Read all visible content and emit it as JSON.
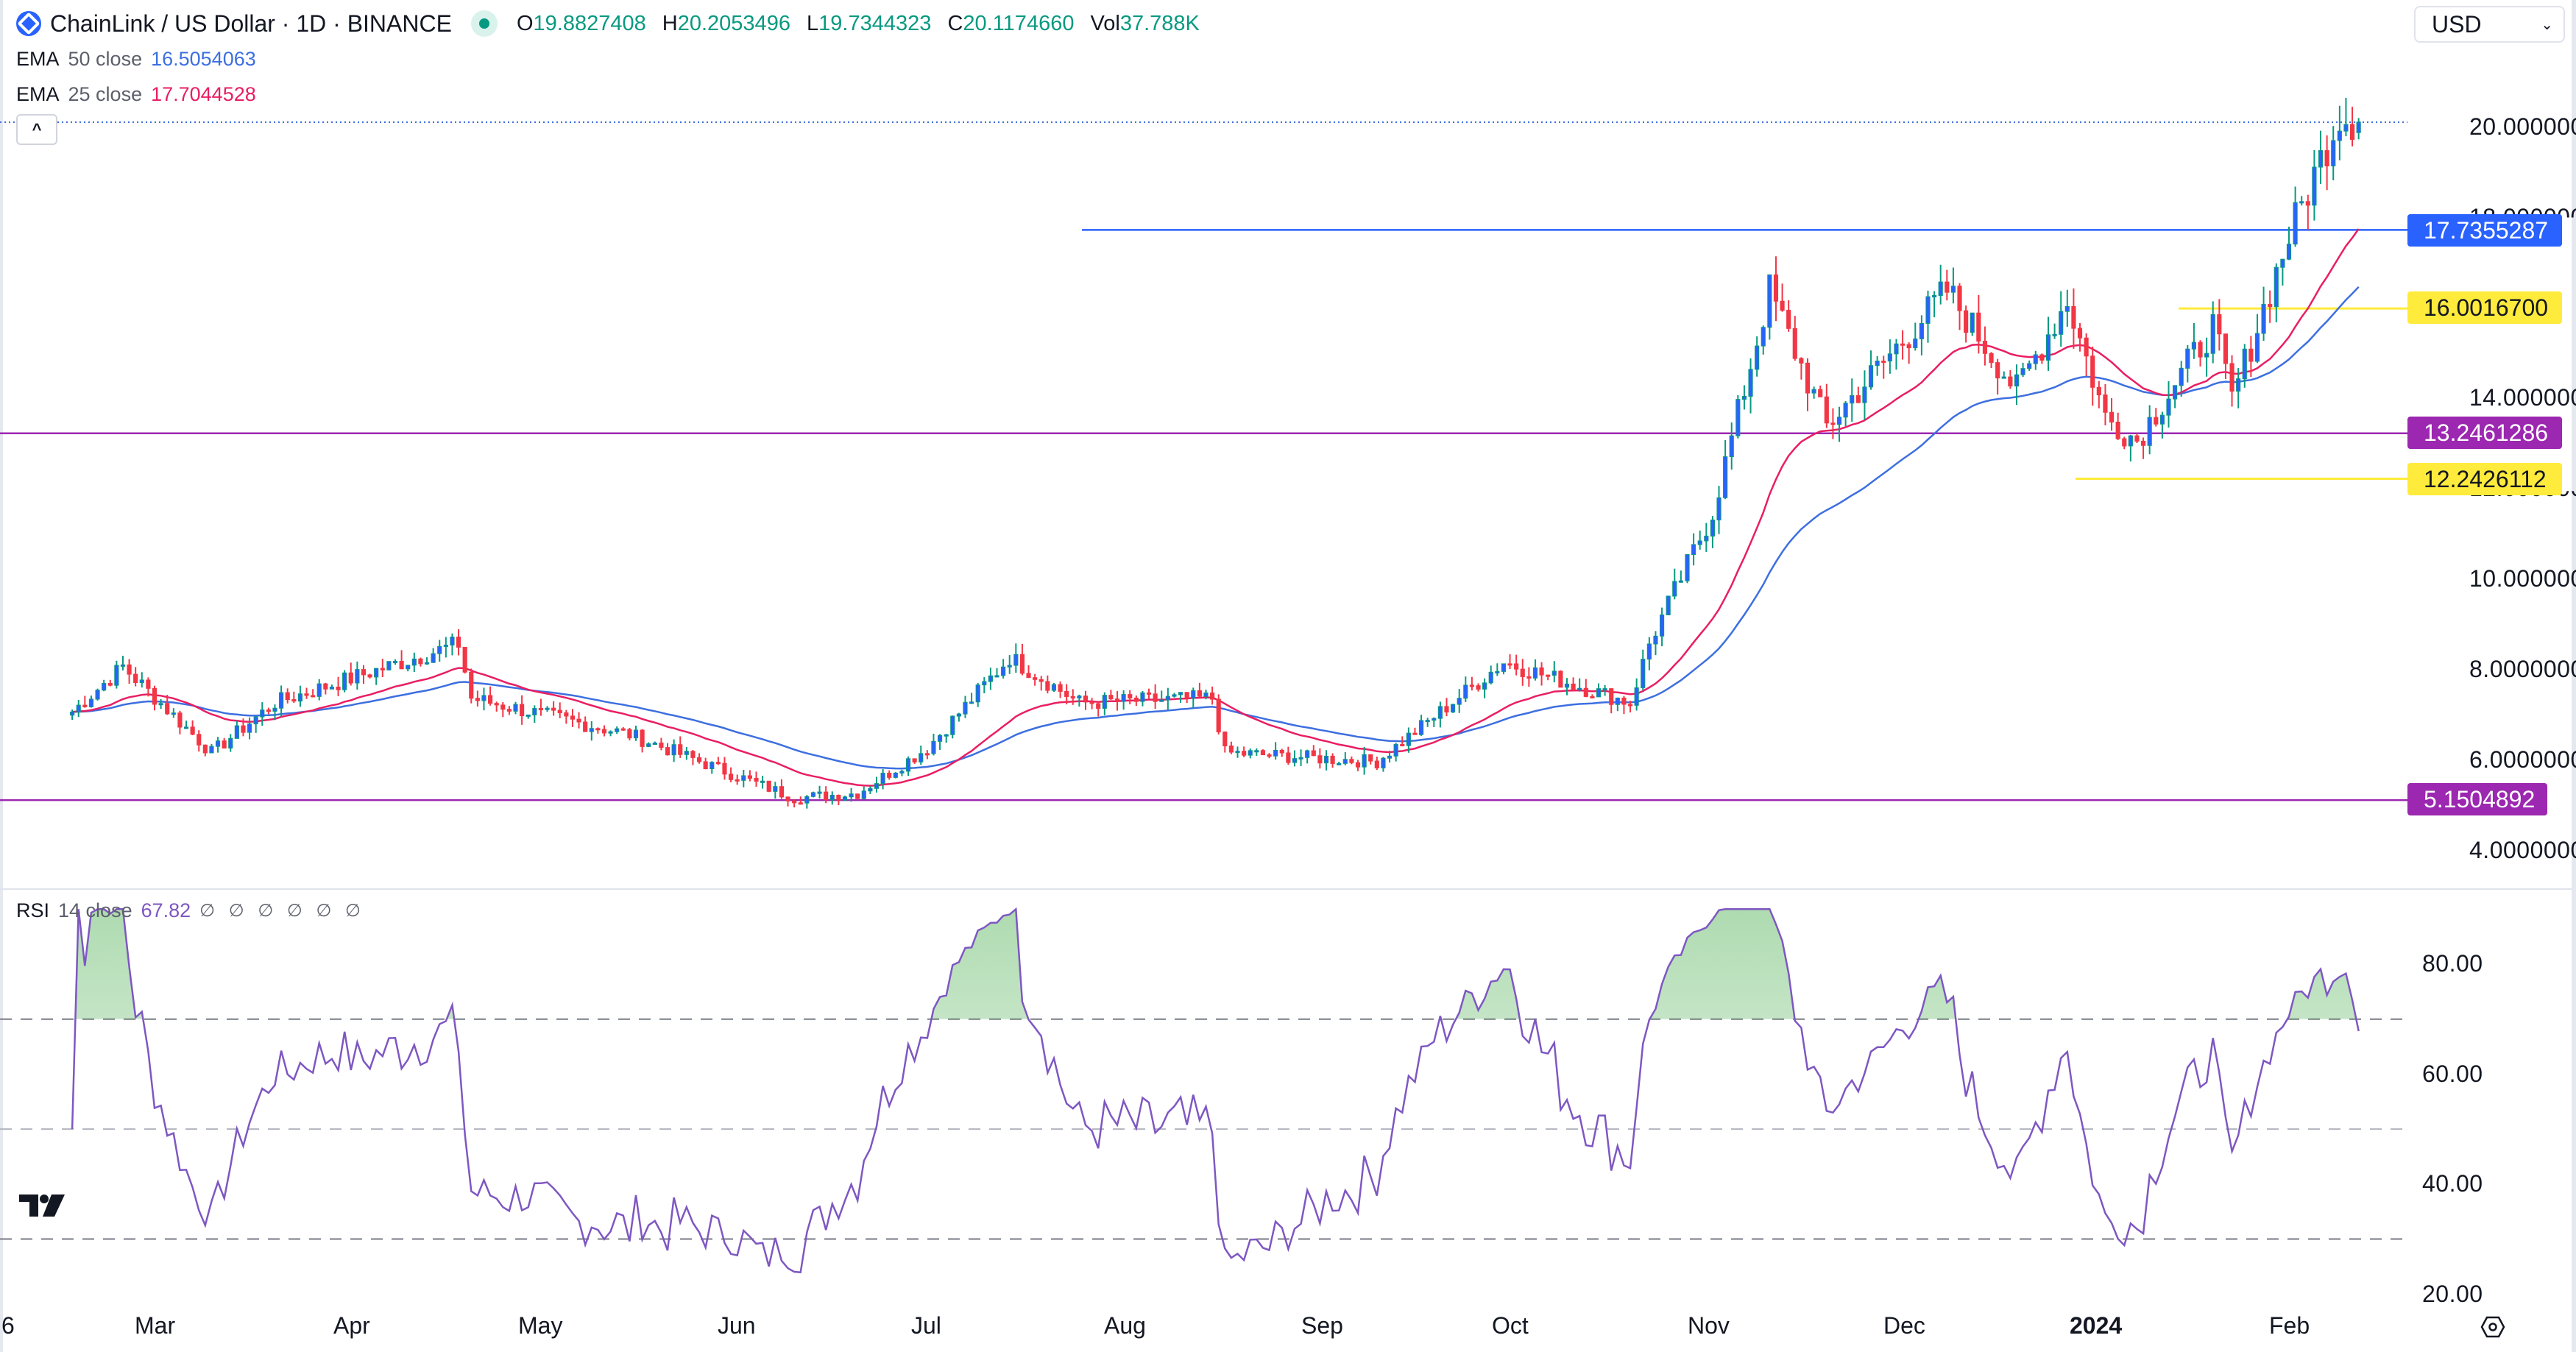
{
  "header": {
    "symbol_title": "ChainLink / US Dollar · 1D · BINANCE",
    "ohlc": [
      {
        "key": "O",
        "value": "19.8827408"
      },
      {
        "key": "H",
        "value": "20.2053496"
      },
      {
        "key": "L",
        "value": "19.7344323"
      },
      {
        "key": "C",
        "value": "20.1174660"
      },
      {
        "key": "Vol",
        "value": "37.788K"
      }
    ],
    "market_status": "open"
  },
  "indicators": [
    {
      "name": "EMA",
      "params": "50 close",
      "value": "16.5054063",
      "color": "#3d6fe0"
    },
    {
      "name": "EMA",
      "params": "25 close",
      "value": "17.7044528",
      "color": "#e91e63"
    }
  ],
  "collapse_label": "^",
  "currency_select": {
    "value": "USD",
    "chevron": "⌄"
  },
  "price_axis": {
    "ticks": [
      "20.0000000",
      "18.0000000",
      "14.0000000",
      "12.0000000",
      "10.0000000",
      "8.0000000",
      "6.0000000",
      "4.0000000"
    ]
  },
  "price_tags": [
    {
      "value": "17.7355287",
      "bg": "#2962ff",
      "fg": "#ffffff"
    },
    {
      "value": "16.0016700",
      "bg": "#ffeb3b",
      "fg": "#131722"
    },
    {
      "value": "13.2461286",
      "bg": "#9c27b0",
      "fg": "#ffffff"
    },
    {
      "value": "12.2426112",
      "bg": "#ffeb3b",
      "fg": "#131722"
    },
    {
      "value": "5.1504892",
      "bg": "#9c27b0",
      "fg": "#ffffff"
    }
  ],
  "rsi": {
    "name": "RSI",
    "params": "14 close",
    "value": "67.82",
    "na_values": "∅ ∅ ∅ ∅ ∅ ∅",
    "ticks": [
      "80.00",
      "60.00",
      "40.00",
      "20.00"
    ]
  },
  "time_axis": {
    "labels": [
      "6",
      "Mar",
      "Apr",
      "May",
      "Jun",
      "Jul",
      "Aug",
      "Sep",
      "Oct",
      "Nov",
      "Dec",
      "2024",
      "Feb"
    ]
  },
  "colors": {
    "up": "#2962ff",
    "up_wick": "#089981",
    "down": "#f23645",
    "ema50": "#3d6fe0",
    "ema25": "#e91e63",
    "rsi": "#7e57c2",
    "support_purple": "#9c27b0",
    "resistance_blue": "#2962ff",
    "level_yellow": "#ffeb3b"
  },
  "chart_data": {
    "type": "candlestick",
    "title": "ChainLink / US Dollar · 1D · BINANCE",
    "x_range": [
      "2023-02",
      "2024-02"
    ],
    "xticks": [
      "Mar",
      "Apr",
      "May",
      "Jun",
      "Jul",
      "Aug",
      "Sep",
      "Oct",
      "Nov",
      "Dec",
      "2024",
      "Feb"
    ],
    "ylim": [
      3.5,
      21.0
    ],
    "yticks": [
      4,
      6,
      8,
      10,
      12,
      14,
      18,
      20
    ],
    "last_bar": {
      "open": 19.8827408,
      "high": 20.2053496,
      "low": 19.7344323,
      "close": 20.117466,
      "volume": "37.788K"
    },
    "key_price_points": [
      {
        "date": "2023-02-16",
        "close": 7.1
      },
      {
        "date": "2023-02-24",
        "close": 8.1
      },
      {
        "date": "2023-03-10",
        "close": 6.2
      },
      {
        "date": "2023-03-20",
        "close": 7.3
      },
      {
        "date": "2023-04-18",
        "close": 8.6
      },
      {
        "date": "2023-04-20",
        "close": 7.4
      },
      {
        "date": "2023-05-15",
        "close": 6.6
      },
      {
        "date": "2023-06-10",
        "close": 5.2
      },
      {
        "date": "2023-06-20",
        "close": 5.3
      },
      {
        "date": "2023-07-01",
        "close": 6.3
      },
      {
        "date": "2023-07-14",
        "close": 8.3
      },
      {
        "date": "2023-07-25",
        "close": 7.3
      },
      {
        "date": "2023-08-15",
        "close": 7.4
      },
      {
        "date": "2023-08-17",
        "close": 6.2
      },
      {
        "date": "2023-09-10",
        "close": 6.0
      },
      {
        "date": "2023-09-30",
        "close": 8.2
      },
      {
        "date": "2023-10-20",
        "close": 7.3
      },
      {
        "date": "2023-10-23",
        "close": 8.6
      },
      {
        "date": "2023-11-02",
        "close": 11.5
      },
      {
        "date": "2023-11-11",
        "close": 16.4
      },
      {
        "date": "2023-11-20",
        "close": 13.4
      },
      {
        "date": "2023-12-09",
        "close": 16.4
      },
      {
        "date": "2023-12-20",
        "close": 14.2
      },
      {
        "date": "2023-12-28",
        "close": 16.2
      },
      {
        "date": "2024-01-03",
        "close": 13.6
      },
      {
        "date": "2024-01-08",
        "close": 13.1
      },
      {
        "date": "2024-01-20",
        "close": 15.6
      },
      {
        "date": "2024-01-23",
        "close": 14.0
      },
      {
        "date": "2024-02-01",
        "close": 17.6
      },
      {
        "date": "2024-02-09",
        "close": 20.3
      },
      {
        "date": "2024-02-12",
        "close": 20.12
      }
    ],
    "series": [
      {
        "name": "EMA 50 close",
        "last": 16.5054063,
        "color": "#3d6fe0"
      },
      {
        "name": "EMA 25 close",
        "last": 17.7044528,
        "color": "#e91e63"
      }
    ],
    "horizontal_levels": [
      {
        "value": 17.7355287,
        "color": "#2962ff",
        "label": "resistance"
      },
      {
        "value": 16.00167,
        "color": "#ffeb3b"
      },
      {
        "value": 13.2461286,
        "color": "#9c27b0"
      },
      {
        "value": 12.2426112,
        "color": "#ffeb3b"
      },
      {
        "value": 5.1504892,
        "color": "#9c27b0"
      }
    ],
    "rsi_panel": {
      "type": "line",
      "name": "RSI 14 close",
      "last": 67.82,
      "ylim": [
        20,
        90
      ],
      "yticks": [
        20,
        40,
        60,
        80
      ],
      "bands": [
        70,
        50,
        30
      ],
      "key_points": [
        {
          "date": "2023-03-15",
          "value": 33
        },
        {
          "date": "2023-04-18",
          "value": 72
        },
        {
          "date": "2023-06-10",
          "value": 25
        },
        {
          "date": "2023-07-20",
          "value": 74
        },
        {
          "date": "2023-08-17",
          "value": 31
        },
        {
          "date": "2023-10-05",
          "value": 73
        },
        {
          "date": "2023-11-05",
          "value": 82
        },
        {
          "date": "2023-11-12",
          "value": 86
        },
        {
          "date": "2024-01-08",
          "value": 39
        },
        {
          "date": "2024-02-07",
          "value": 73
        },
        {
          "date": "2024-02-12",
          "value": 67.82
        }
      ]
    }
  }
}
